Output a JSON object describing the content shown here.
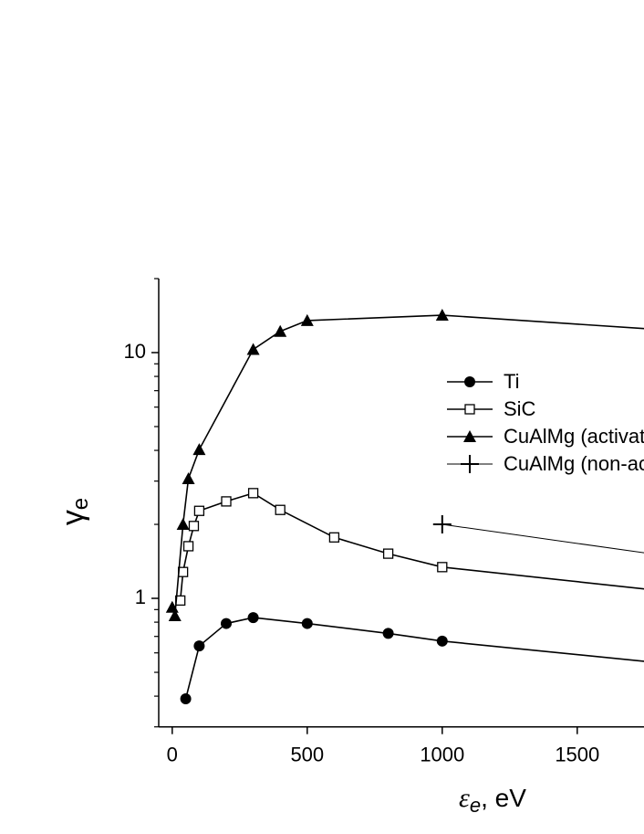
{
  "chart_data": {
    "type": "line",
    "xlabel": [
      "ε",
      "e",
      ", eV"
    ],
    "ylabel": [
      "γ",
      "e"
    ],
    "xlim": [
      -50,
      2050
    ],
    "ylim": [
      0.3,
      20
    ],
    "ylog": true,
    "xticks": [
      0,
      500,
      1000,
      1500
    ],
    "yticks": [
      1,
      10
    ],
    "yminorticks": [
      0.3,
      0.4,
      0.5,
      0.6,
      0.7,
      0.8,
      0.9,
      2,
      3,
      4,
      5,
      6,
      7,
      8,
      9,
      20
    ],
    "legend": "upper-right",
    "series": [
      {
        "name": "Ti",
        "color": "#000000",
        "marker": "circle",
        "x": [
          50,
          100,
          200,
          300,
          500,
          800,
          1000,
          2000
        ],
        "values": [
          0.39,
          0.64,
          0.79,
          0.835,
          0.79,
          0.72,
          0.67,
          0.52
        ]
      },
      {
        "name": "SiC",
        "color": "#000000",
        "marker": "square",
        "x": [
          30,
          40,
          60,
          80,
          100,
          200,
          300,
          400,
          600,
          800,
          1000,
          2000
        ],
        "values": [
          0.98,
          1.28,
          1.63,
          1.97,
          2.27,
          2.48,
          2.68,
          2.29,
          1.77,
          1.52,
          1.34,
          1.02
        ]
      },
      {
        "name": "CuAlMg (activated)",
        "color": "#000000",
        "marker": "triangle",
        "x": [
          0,
          10,
          40,
          60,
          100,
          300,
          400,
          500,
          1000,
          2000
        ],
        "values": [
          0.92,
          0.85,
          2.0,
          3.07,
          4.03,
          10.3,
          12.2,
          13.5,
          14.2,
          12.0
        ]
      },
      {
        "name": "CuAlMg (non-activated)",
        "color": "#000000",
        "marker": "plus",
        "x": [
          1000,
          2000
        ],
        "values": [
          2.0,
          1.4
        ]
      }
    ]
  }
}
